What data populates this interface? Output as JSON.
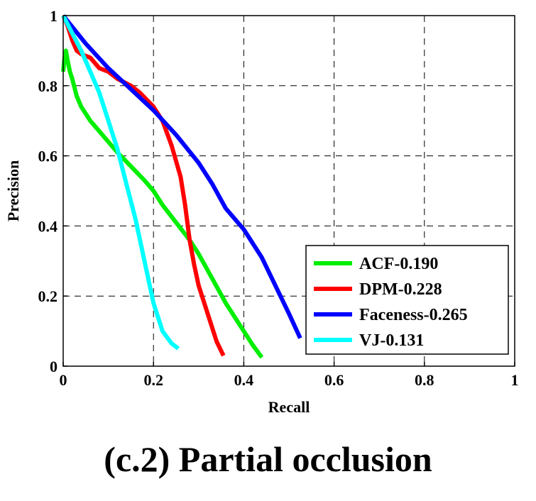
{
  "caption": "(c.2) Partial occlusion",
  "chart_data": {
    "type": "line",
    "title": "",
    "xlabel": "Recall",
    "ylabel": "Precision",
    "xlim": [
      0,
      1
    ],
    "ylim": [
      0,
      1
    ],
    "xticks": [
      0,
      0.2,
      0.4,
      0.6,
      0.8,
      1
    ],
    "yticks": [
      0,
      0.2,
      0.4,
      0.6,
      0.8,
      1
    ],
    "xtick_labels": [
      "0",
      "0.2",
      "0.4",
      "0.6",
      "0.8",
      "1"
    ],
    "ytick_labels": [
      "0",
      "0.2",
      "0.4",
      "0.6",
      "0.8",
      "1"
    ],
    "grid": true,
    "legend_position": "bottom-right",
    "series": [
      {
        "name": "ACF-0.190",
        "color": "#00ee00",
        "points": [
          [
            0,
            0.84
          ],
          [
            0.003,
            0.88
          ],
          [
            0.006,
            0.9
          ],
          [
            0.01,
            0.87
          ],
          [
            0.015,
            0.84
          ],
          [
            0.02,
            0.82
          ],
          [
            0.03,
            0.77
          ],
          [
            0.04,
            0.74
          ],
          [
            0.05,
            0.72
          ],
          [
            0.06,
            0.7
          ],
          [
            0.08,
            0.67
          ],
          [
            0.1,
            0.64
          ],
          [
            0.12,
            0.61
          ],
          [
            0.15,
            0.57
          ],
          [
            0.18,
            0.53
          ],
          [
            0.2,
            0.5
          ],
          [
            0.22,
            0.46
          ],
          [
            0.25,
            0.41
          ],
          [
            0.28,
            0.36
          ],
          [
            0.3,
            0.32
          ],
          [
            0.33,
            0.25
          ],
          [
            0.36,
            0.18
          ],
          [
            0.39,
            0.12
          ],
          [
            0.42,
            0.06
          ],
          [
            0.44,
            0.025
          ]
        ]
      },
      {
        "name": "DPM-0.228",
        "color": "#ff0000",
        "points": [
          [
            0,
            1
          ],
          [
            0.01,
            0.97
          ],
          [
            0.02,
            0.93
          ],
          [
            0.03,
            0.9
          ],
          [
            0.04,
            0.89
          ],
          [
            0.06,
            0.88
          ],
          [
            0.08,
            0.85
          ],
          [
            0.1,
            0.84
          ],
          [
            0.12,
            0.82
          ],
          [
            0.15,
            0.8
          ],
          [
            0.17,
            0.78
          ],
          [
            0.2,
            0.74
          ],
          [
            0.22,
            0.7
          ],
          [
            0.24,
            0.63
          ],
          [
            0.26,
            0.54
          ],
          [
            0.27,
            0.46
          ],
          [
            0.28,
            0.36
          ],
          [
            0.29,
            0.29
          ],
          [
            0.3,
            0.23
          ],
          [
            0.32,
            0.15
          ],
          [
            0.34,
            0.07
          ],
          [
            0.355,
            0.03
          ]
        ]
      },
      {
        "name": "Faceness-0.265",
        "color": "#0000ff",
        "points": [
          [
            0,
            1
          ],
          [
            0.05,
            0.92
          ],
          [
            0.1,
            0.85
          ],
          [
            0.15,
            0.79
          ],
          [
            0.2,
            0.73
          ],
          [
            0.25,
            0.66
          ],
          [
            0.3,
            0.58
          ],
          [
            0.33,
            0.52
          ],
          [
            0.36,
            0.45
          ],
          [
            0.4,
            0.39
          ],
          [
            0.44,
            0.31
          ],
          [
            0.47,
            0.23
          ],
          [
            0.5,
            0.15
          ],
          [
            0.525,
            0.08
          ]
        ]
      },
      {
        "name": "VJ-0.131",
        "color": "#00ffff",
        "points": [
          [
            0,
            1
          ],
          [
            0.02,
            0.95
          ],
          [
            0.04,
            0.9
          ],
          [
            0.06,
            0.84
          ],
          [
            0.08,
            0.78
          ],
          [
            0.1,
            0.7
          ],
          [
            0.12,
            0.62
          ],
          [
            0.14,
            0.52
          ],
          [
            0.16,
            0.42
          ],
          [
            0.18,
            0.3
          ],
          [
            0.2,
            0.18
          ],
          [
            0.22,
            0.1
          ],
          [
            0.24,
            0.065
          ],
          [
            0.255,
            0.05
          ]
        ]
      }
    ]
  }
}
